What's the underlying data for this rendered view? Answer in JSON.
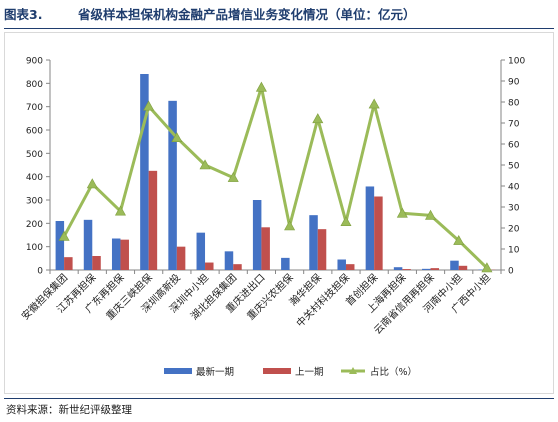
{
  "figure": {
    "label": "图表3.",
    "title": "省级样本担保机构金融产品增信业务变化情况（单位：亿元）",
    "source": "资料来源：新世纪评级整理"
  },
  "chart_data": {
    "type": "bar",
    "categories": [
      "安徽担保集团",
      "江苏再担保",
      "广东再担保",
      "重庆三峡担保",
      "深圳高新投",
      "深圳中小担",
      "湖北担保集团",
      "重庆进出口",
      "重庆兴农担保",
      "瀚华担保",
      "中关村科技担保",
      "首创担保",
      "上海再担保",
      "云南省信用再担保",
      "河南中小担",
      "广西中小担"
    ],
    "series": [
      {
        "name": "最新一期",
        "color": "#4472c4",
        "axis": "left",
        "kind": "bar",
        "values": [
          210,
          215,
          135,
          840,
          725,
          160,
          80,
          300,
          52,
          235,
          45,
          358,
          12,
          5,
          40,
          2
        ]
      },
      {
        "name": "上一期",
        "color": "#c0504d",
        "axis": "left",
        "kind": "bar",
        "values": [
          55,
          60,
          130,
          425,
          100,
          32,
          25,
          183,
          0,
          175,
          25,
          315,
          4,
          8,
          18,
          1
        ]
      },
      {
        "name": "占比（%）",
        "color": "#9bbb59",
        "axis": "right",
        "kind": "line",
        "marker": "triangle",
        "values": [
          16,
          41,
          28,
          78,
          63,
          50,
          44,
          87,
          21,
          72,
          23,
          79,
          27,
          26,
          14,
          1
        ]
      }
    ],
    "left_axis": {
      "min": 0,
      "max": 900,
      "step": 100,
      "ticks": [
        "0",
        "100",
        "200",
        "300",
        "400",
        "500",
        "600",
        "700",
        "800",
        "900"
      ]
    },
    "right_axis": {
      "min": 0,
      "max": 100,
      "step": 10,
      "ticks": [
        "0",
        "10",
        "20",
        "30",
        "40",
        "50",
        "60",
        "70",
        "80",
        "90",
        "100"
      ]
    },
    "grid": false,
    "legend": "bottom"
  }
}
